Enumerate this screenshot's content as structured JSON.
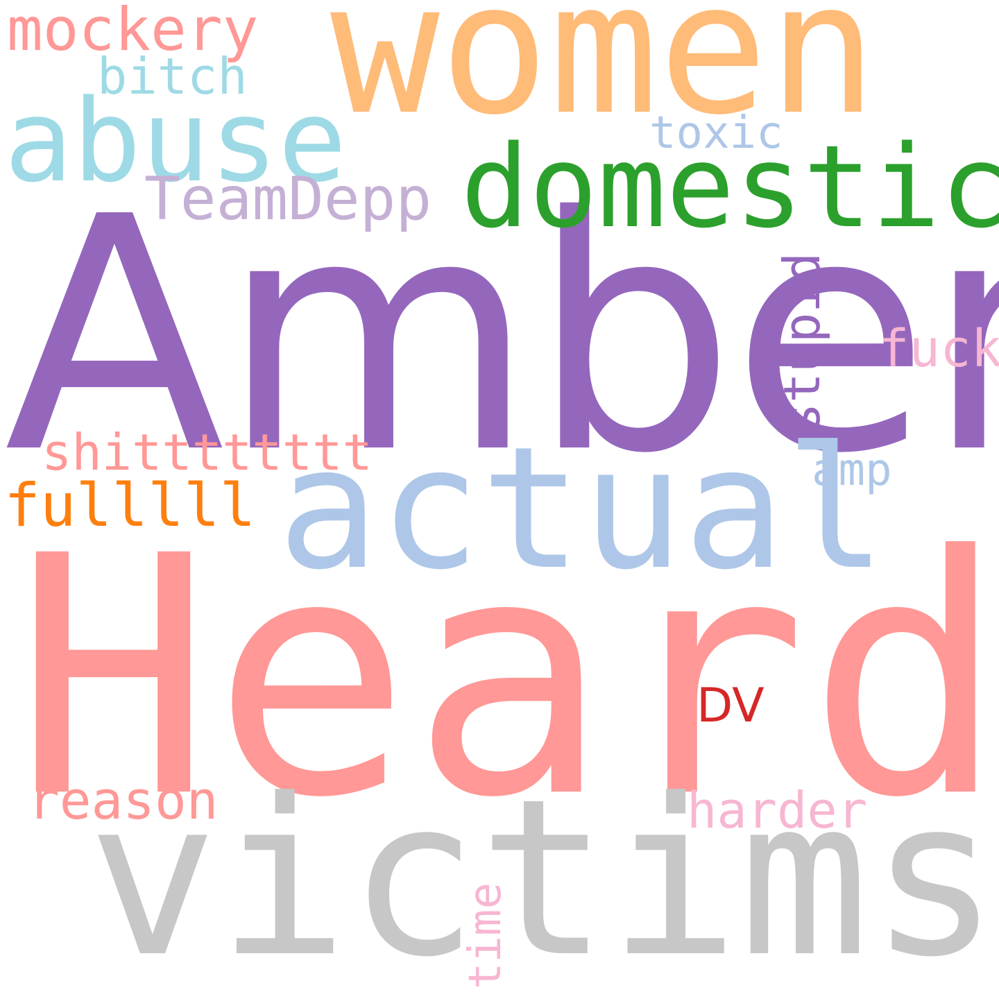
{
  "words": [
    {
      "text": "Amber",
      "color": "#9467bd"
    },
    {
      "text": "Heard",
      "color": "#ff9896"
    },
    {
      "text": "victims",
      "color": "#c7c7c7"
    },
    {
      "text": "women",
      "color": "#ffbb78"
    },
    {
      "text": "actual",
      "color": "#aec7e8"
    },
    {
      "text": "domestic",
      "color": "#2ca02c"
    },
    {
      "text": "abuse",
      "color": "#9edae5"
    },
    {
      "text": "mockery",
      "color": "#ff9896"
    },
    {
      "text": "bitch",
      "color": "#9edae5"
    },
    {
      "text": "toxic",
      "color": "#aec7e8"
    },
    {
      "text": "TeamDepp",
      "color": "#c5b0d5"
    },
    {
      "text": "stupid",
      "color": "#9467bd"
    },
    {
      "text": "fuck",
      "color": "#f7b6d2"
    },
    {
      "text": "shitttttttt",
      "color": "#ff9896"
    },
    {
      "text": "fulllll",
      "color": "#ff7f0e"
    },
    {
      "text": "amp",
      "color": "#aec7e8"
    },
    {
      "text": "DV",
      "color": "#d62728"
    },
    {
      "text": "reason",
      "color": "#ff9896"
    },
    {
      "text": "harder",
      "color": "#f7b6d2"
    },
    {
      "text": "time",
      "color": "#f7b6d2"
    }
  ]
}
